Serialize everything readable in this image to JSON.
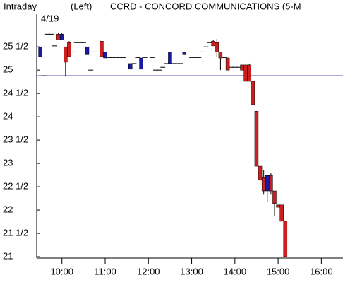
{
  "chart_data": {
    "type": "candlestick",
    "mode_label": "Intraday",
    "axis_side": "(Left)",
    "title": "CCRD - CONCORD COMMUNICATIONS  (5-M",
    "date_label": "4/19",
    "x": [
      570,
      575,
      580,
      585,
      590,
      595,
      600,
      605,
      610,
      615,
      620,
      625,
      630,
      635,
      640,
      645,
      655,
      660,
      665,
      670,
      675,
      680,
      685,
      695,
      700,
      705,
      710,
      715,
      725,
      730,
      735,
      740,
      745,
      750,
      755,
      760,
      765,
      770,
      780,
      785,
      790,
      795,
      800,
      805,
      810,
      815,
      820,
      825,
      830,
      835,
      840,
      845,
      850,
      855,
      860,
      865,
      870,
      875,
      880,
      885,
      890,
      895,
      900,
      905,
      910
    ],
    "open": [
      25.29,
      24.88,
      25.77,
      25.77,
      25.52,
      25.77,
      25.65,
      25.5,
      25.59,
      25.39,
      25.59,
      25.59,
      25.59,
      25.33,
      25.0,
      25.39,
      25.62,
      25.26,
      25.27,
      25.27,
      25.27,
      25.27,
      25.27,
      25.02,
      25.14,
      25.27,
      25.02,
      25.27,
      25.27,
      25.0,
      25.0,
      25.06,
      25.14,
      25.14,
      25.14,
      25.14,
      25.14,
      25.33,
      25.27,
      25.27,
      25.27,
      25.39,
      25.5,
      25.59,
      25.62,
      25.59,
      25.39,
      25.27,
      25.26,
      25.06,
      25.06,
      25.06,
      25.11,
      25.11,
      25.11,
      24.76,
      24.12,
      22.94,
      22.71,
      22.41,
      22.74,
      22.41,
      22.11,
      22.11,
      21.76
    ],
    "high": [
      25.5,
      24.88,
      25.77,
      25.77,
      25.52,
      25.8,
      25.8,
      25.5,
      25.62,
      25.39,
      25.59,
      25.59,
      25.59,
      25.5,
      25.0,
      25.39,
      25.62,
      25.39,
      25.27,
      25.27,
      25.27,
      25.27,
      25.27,
      25.14,
      25.14,
      25.27,
      25.26,
      25.27,
      25.27,
      25.0,
      25.0,
      25.06,
      25.14,
      25.39,
      25.14,
      25.14,
      25.14,
      25.39,
      25.27,
      25.27,
      25.27,
      25.39,
      25.5,
      25.59,
      25.64,
      25.67,
      25.39,
      25.27,
      25.26,
      25.06,
      25.06,
      25.06,
      25.11,
      25.11,
      25.14,
      24.76,
      24.12,
      22.94,
      22.86,
      22.74,
      22.8,
      22.41,
      22.11,
      22.11,
      21.76
    ],
    "low": [
      25.29,
      24.88,
      25.77,
      25.77,
      25.52,
      25.65,
      25.65,
      24.88,
      25.29,
      25.39,
      25.59,
      25.59,
      25.59,
      25.33,
      25.0,
      25.39,
      25.29,
      25.26,
      25.27,
      25.27,
      25.27,
      25.27,
      25.27,
      25.02,
      25.14,
      25.27,
      25.02,
      25.27,
      25.27,
      25.0,
      25.0,
      25.06,
      25.14,
      25.14,
      25.14,
      25.14,
      25.14,
      25.33,
      25.27,
      25.27,
      25.27,
      25.39,
      25.5,
      25.59,
      25.52,
      25.29,
      25.0,
      25.27,
      25.0,
      25.06,
      25.06,
      25.06,
      25.0,
      24.76,
      24.76,
      24.26,
      22.94,
      22.53,
      22.33,
      22.18,
      22.33,
      21.88,
      22.06,
      21.76,
      21.0
    ],
    "close": [
      25.5,
      24.88,
      25.77,
      25.77,
      25.52,
      25.65,
      25.77,
      25.17,
      25.29,
      25.39,
      25.59,
      25.59,
      25.59,
      25.5,
      25.0,
      25.39,
      25.29,
      25.39,
      25.27,
      25.27,
      25.27,
      25.27,
      25.27,
      25.14,
      25.14,
      25.27,
      25.26,
      25.27,
      25.27,
      25.0,
      25.0,
      25.06,
      25.14,
      25.39,
      25.14,
      25.14,
      25.14,
      25.39,
      25.27,
      25.27,
      25.27,
      25.39,
      25.5,
      25.59,
      25.52,
      25.39,
      25.26,
      25.27,
      25.0,
      25.06,
      25.06,
      25.06,
      25.0,
      24.76,
      24.76,
      24.26,
      22.94,
      22.64,
      22.41,
      22.74,
      22.41,
      22.14,
      22.06,
      21.76,
      21.0
    ],
    "up_color": "#1a1aa6",
    "down_color": "#cc2020",
    "doji_color": "#000000",
    "reference_line": 24.88,
    "reference_color": "#1a1aa6",
    "xlim": [
      565,
      990
    ],
    "xticks": [
      {
        "value": 600,
        "label": "10:00"
      },
      {
        "value": 660,
        "label": "11:00"
      },
      {
        "value": 720,
        "label": "12:00"
      },
      {
        "value": 780,
        "label": "13:00"
      },
      {
        "value": 840,
        "label": "14:00"
      },
      {
        "value": 900,
        "label": "15:00"
      },
      {
        "value": 960,
        "label": "16:00"
      }
    ],
    "ylim": [
      20.97,
      26.2
    ],
    "yticks": [
      21,
      {
        "value": 21.5,
        "label": "21 1/2"
      },
      22,
      {
        "value": 22.5,
        "label": "22 1/2"
      },
      23,
      {
        "value": 23.5,
        "label": "23 1/2"
      },
      24,
      {
        "value": 24.5,
        "label": "24 1/2"
      },
      25,
      {
        "value": 25.5,
        "label": "25 1/2"
      }
    ]
  }
}
